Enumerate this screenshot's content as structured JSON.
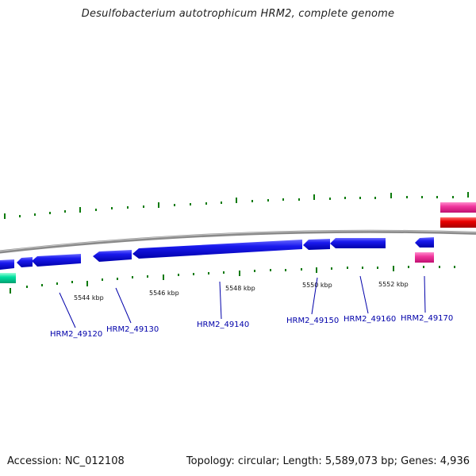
{
  "title": "Desulfobacterium autotrophicum HRM2, complete genome",
  "footer": {
    "accession": "Accession: NC_012108",
    "summary": "Topology: circular; Length: 5,589,073 bp; Genes: 4,936"
  },
  "kbp_labels": [
    "5544 kbp",
    "5546 kbp",
    "5548 kbp",
    "5550 kbp",
    "5552 kbp"
  ],
  "gene_labels": [
    "HRM2_49120",
    "HRM2_49130",
    "HRM2_49140",
    "HRM2_49150",
    "HRM2_49160",
    "HRM2_49170"
  ],
  "colors": {
    "backbone": "#8a8a8a",
    "cds": "#1a1aee",
    "tick": "#0b7a0b",
    "teal_feature": "#00e0a0",
    "pink_feature": "#f0389e",
    "red_feature": "#e80000",
    "label": "#0000aa"
  }
}
